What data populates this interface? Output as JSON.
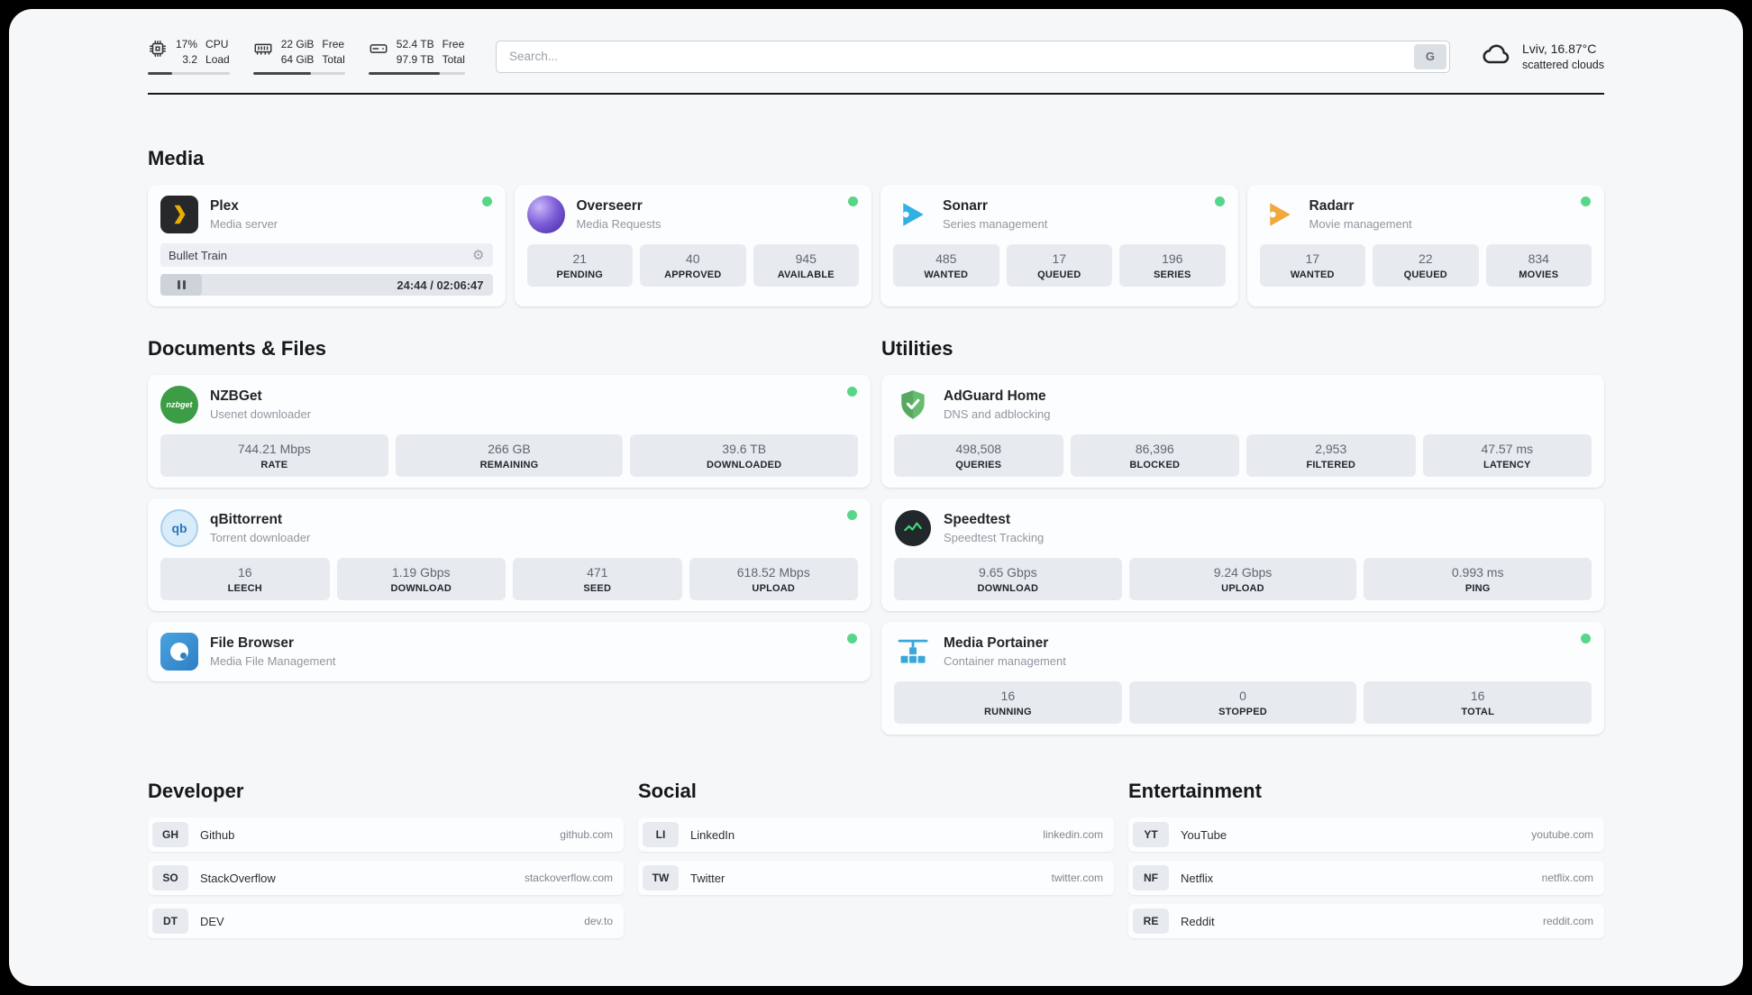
{
  "header": {
    "metrics": [
      {
        "icon": "cpu-icon",
        "values": [
          "17%",
          "3.2"
        ],
        "labels": [
          "CPU",
          "Load"
        ],
        "progress": 30
      },
      {
        "icon": "ram-icon",
        "values": [
          "22 GiB",
          "64 GiB"
        ],
        "labels": [
          "Free",
          "Total"
        ],
        "progress": 63
      },
      {
        "icon": "disk-icon",
        "values": [
          "52.4 TB",
          "97.9 TB"
        ],
        "labels": [
          "Free",
          "Total"
        ],
        "progress": 74
      }
    ],
    "search": {
      "placeholder": "Search...",
      "button_label": "G"
    },
    "weather": {
      "location": "Lviv, 16.87°C",
      "condition": "scattered clouds"
    }
  },
  "media": {
    "title": "Media",
    "plex": {
      "name": "Plex",
      "subtitle": "Media server",
      "now_playing": "Bullet Train",
      "time": "24:44 / 02:06:47"
    },
    "overseerr": {
      "name": "Overseerr",
      "subtitle": "Media Requests",
      "stats": [
        {
          "value": "21",
          "label": "PENDING"
        },
        {
          "value": "40",
          "label": "APPROVED"
        },
        {
          "value": "945",
          "label": "AVAILABLE"
        }
      ]
    },
    "sonarr": {
      "name": "Sonarr",
      "subtitle": "Series management",
      "stats": [
        {
          "value": "485",
          "label": "WANTED"
        },
        {
          "value": "17",
          "label": "QUEUED"
        },
        {
          "value": "196",
          "label": "SERIES"
        }
      ]
    },
    "radarr": {
      "name": "Radarr",
      "subtitle": "Movie management",
      "stats": [
        {
          "value": "17",
          "label": "WANTED"
        },
        {
          "value": "22",
          "label": "QUEUED"
        },
        {
          "value": "834",
          "label": "MOVIES"
        }
      ]
    }
  },
  "documents": {
    "title": "Documents & Files",
    "nzbget": {
      "name": "NZBGet",
      "subtitle": "Usenet downloader",
      "icon_text": "nzbget",
      "stats": [
        {
          "value": "744.21 Mbps",
          "label": "RATE"
        },
        {
          "value": "266 GB",
          "label": "REMAINING"
        },
        {
          "value": "39.6 TB",
          "label": "DOWNLOADED"
        }
      ]
    },
    "qbittorrent": {
      "name": "qBittorrent",
      "subtitle": "Torrent downloader",
      "icon_text": "qb",
      "stats": [
        {
          "value": "16",
          "label": "LEECH"
        },
        {
          "value": "1.19 Gbps",
          "label": "DOWNLOAD"
        },
        {
          "value": "471",
          "label": "SEED"
        },
        {
          "value": "618.52 Mbps",
          "label": "UPLOAD"
        }
      ]
    },
    "filebrowser": {
      "name": "File Browser",
      "subtitle": "Media File Management"
    }
  },
  "utilities": {
    "title": "Utilities",
    "adguard": {
      "name": "AdGuard Home",
      "subtitle": "DNS and adblocking",
      "stats": [
        {
          "value": "498,508",
          "label": "QUERIES"
        },
        {
          "value": "86,396",
          "label": "BLOCKED"
        },
        {
          "value": "2,953",
          "label": "FILTERED"
        },
        {
          "value": "47.57 ms",
          "label": "LATENCY"
        }
      ]
    },
    "speedtest": {
      "name": "Speedtest",
      "subtitle": "Speedtest Tracking",
      "stats": [
        {
          "value": "9.65 Gbps",
          "label": "DOWNLOAD"
        },
        {
          "value": "9.24 Gbps",
          "label": "UPLOAD"
        },
        {
          "value": "0.993 ms",
          "label": "PING"
        }
      ]
    },
    "portainer": {
      "name": "Media Portainer",
      "subtitle": "Container management",
      "stats": [
        {
          "value": "16",
          "label": "RUNNING"
        },
        {
          "value": "0",
          "label": "STOPPED"
        },
        {
          "value": "16",
          "label": "TOTAL"
        }
      ]
    }
  },
  "bookmarks": {
    "developer": {
      "title": "Developer",
      "items": [
        {
          "abbr": "GH",
          "name": "Github",
          "url": "github.com"
        },
        {
          "abbr": "SO",
          "name": "StackOverflow",
          "url": "stackoverflow.com"
        },
        {
          "abbr": "DT",
          "name": "DEV",
          "url": "dev.to"
        }
      ]
    },
    "social": {
      "title": "Social",
      "items": [
        {
          "abbr": "LI",
          "name": "LinkedIn",
          "url": "linkedin.com"
        },
        {
          "abbr": "TW",
          "name": "Twitter",
          "url": "twitter.com"
        }
      ]
    },
    "entertainment": {
      "title": "Entertainment",
      "items": [
        {
          "abbr": "YT",
          "name": "YouTube",
          "url": "youtube.com"
        },
        {
          "abbr": "NF",
          "name": "Netflix",
          "url": "netflix.com"
        },
        {
          "abbr": "RE",
          "name": "Reddit",
          "url": "reddit.com"
        }
      ]
    }
  }
}
